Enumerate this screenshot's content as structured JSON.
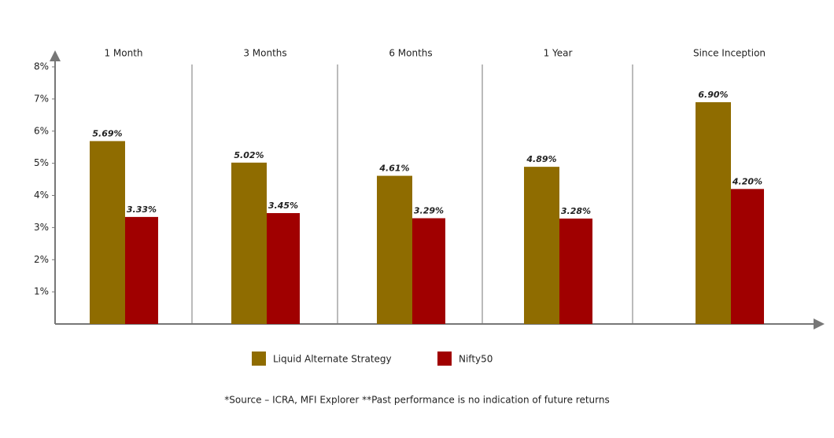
{
  "chart_data": {
    "type": "bar",
    "categories": [
      "1 Month",
      "3 Months",
      "6 Months",
      "1 Year",
      "Since Inception"
    ],
    "series": [
      {
        "name": "Liquid Alternate Strategy",
        "color": "#8f6c00",
        "values": [
          5.69,
          5.02,
          4.61,
          4.89,
          6.9
        ],
        "value_labels": [
          "5.69%",
          "5.02%",
          "4.61%",
          "4.89%",
          "6.90%"
        ]
      },
      {
        "name": "Nifty50",
        "color": "#a00000",
        "values": [
          3.33,
          3.45,
          3.29,
          3.28,
          4.2
        ],
        "value_labels": [
          "3.33%",
          "3.45%",
          "3.29%",
          "3.28%",
          "4.20%"
        ]
      }
    ],
    "ylim": [
      0,
      8
    ],
    "yticks": [
      {
        "value": 1,
        "label": "1%"
      },
      {
        "value": 2,
        "label": "2%"
      },
      {
        "value": 3,
        "label": "3%"
      },
      {
        "value": 4,
        "label": "4%"
      },
      {
        "value": 5,
        "label": "5%"
      },
      {
        "value": 6,
        "label": "6%"
      },
      {
        "value": 7,
        "label": "7%"
      },
      {
        "value": 8,
        "label": "8%"
      }
    ],
    "footnote": "*Source – ICRA, MFI Explorer **Past performance is no indication of future returns"
  }
}
